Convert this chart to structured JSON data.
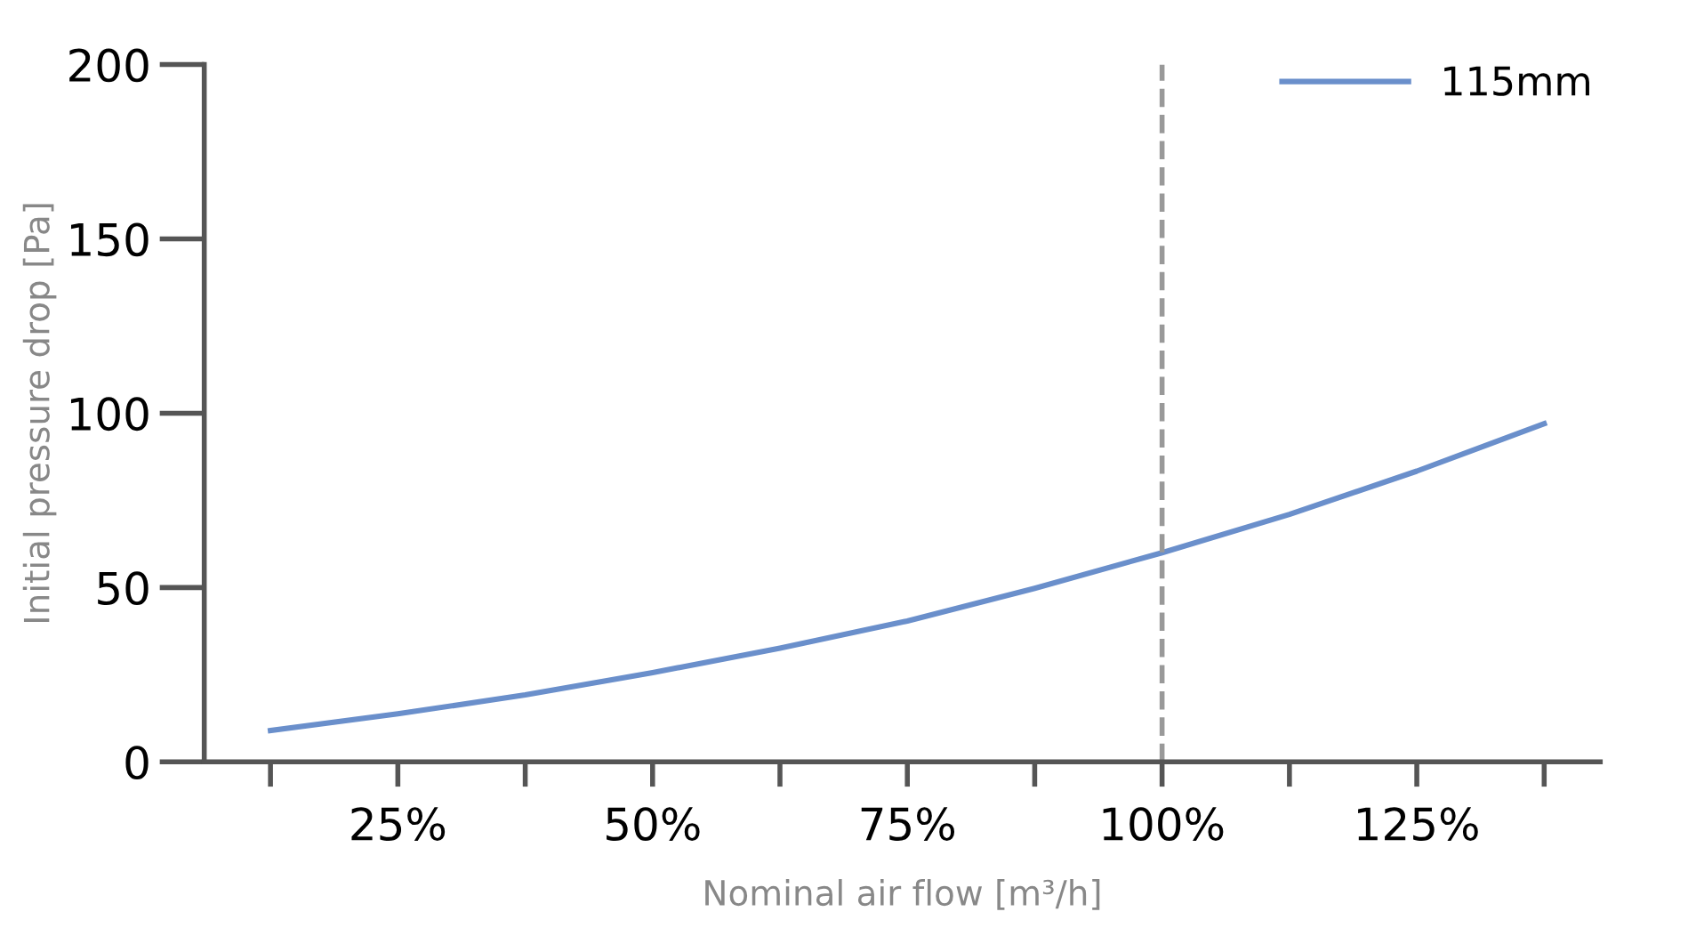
{
  "chart_data": {
    "type": "line",
    "xlabel": "Nominal air flow [m³/h]",
    "ylabel": "Initial pressure drop [Pa]",
    "x": [
      12.5,
      25,
      37.5,
      50,
      62.5,
      75,
      87.5,
      100,
      112.5,
      125,
      137.5
    ],
    "series": [
      {
        "name": "115mm",
        "color": "#6a8fcb",
        "values": [
          9,
          13.8,
          19.2,
          25.6,
          32.6,
          40.4,
          49.8,
          60,
          71,
          83.4,
          97
        ]
      }
    ],
    "xlim": [
      6,
      143
    ],
    "xticks": [
      {
        "value": 12.5,
        "label": null
      },
      {
        "value": 25,
        "label": "25%"
      },
      {
        "value": 37.5,
        "label": null
      },
      {
        "value": 50,
        "label": "50%"
      },
      {
        "value": 62.5,
        "label": null
      },
      {
        "value": 75,
        "label": "75%"
      },
      {
        "value": 87.5,
        "label": null
      },
      {
        "value": 100,
        "label": "100%"
      },
      {
        "value": 112.5,
        "label": null
      },
      {
        "value": 125,
        "label": "125%"
      },
      {
        "value": 137.5,
        "label": null
      }
    ],
    "ylim": [
      0,
      200
    ],
    "yticks": [
      0,
      50,
      100,
      150,
      200
    ],
    "ref_lines": [
      {
        "axis": "x",
        "value": 100,
        "color": "#999999",
        "line_style": "dashed"
      }
    ],
    "grid": false,
    "legend": "top right",
    "marker": "none",
    "line_style": "solid"
  }
}
